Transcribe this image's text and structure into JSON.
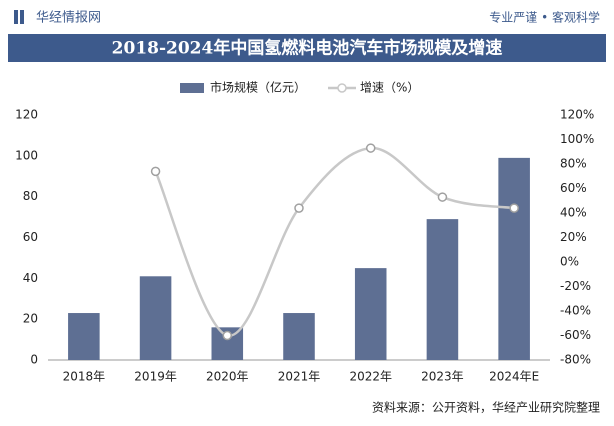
{
  "brand": "华经情报网",
  "slogan": "专业严谨 • 客观科学",
  "chart_data": {
    "type": "bar-line",
    "title": "2018-2024年中国氢燃料电池汽车市场规模及增速",
    "categories": [
      "2018年",
      "2019年",
      "2020年",
      "2021年",
      "2022年",
      "2023年",
      "2024年E"
    ],
    "series": [
      {
        "name": "市场规模（亿元）",
        "color": "#5e6f93",
        "type": "bar",
        "values": [
          23,
          41,
          16,
          23,
          45,
          69,
          99
        ]
      },
      {
        "name": "增速（%）",
        "color": "#c8c8c8",
        "type": "line",
        "axis": "y2",
        "values": [
          null,
          74,
          -60,
          44,
          93,
          53,
          44
        ]
      }
    ],
    "ylim": [
      0,
      120
    ],
    "yticks": [
      0,
      20,
      40,
      60,
      80,
      100,
      120
    ],
    "y2lim": [
      -80,
      120
    ],
    "y2ticks": [
      {
        "value": -80,
        "label": "-80%"
      },
      {
        "value": -60,
        "label": "-60%"
      },
      {
        "value": -40,
        "label": "-40%"
      },
      {
        "value": -20,
        "label": "-20%"
      },
      {
        "value": 0,
        "label": "0%"
      },
      {
        "value": 20,
        "label": "20%"
      },
      {
        "value": 40,
        "label": "40%"
      },
      {
        "value": 60,
        "label": "60%"
      },
      {
        "value": 80,
        "label": "80%"
      },
      {
        "value": 100,
        "label": "100%"
      },
      {
        "value": 120,
        "label": "120%"
      }
    ],
    "grid": false,
    "source": "资料来源：公开资料，华经产业研究院整理"
  }
}
